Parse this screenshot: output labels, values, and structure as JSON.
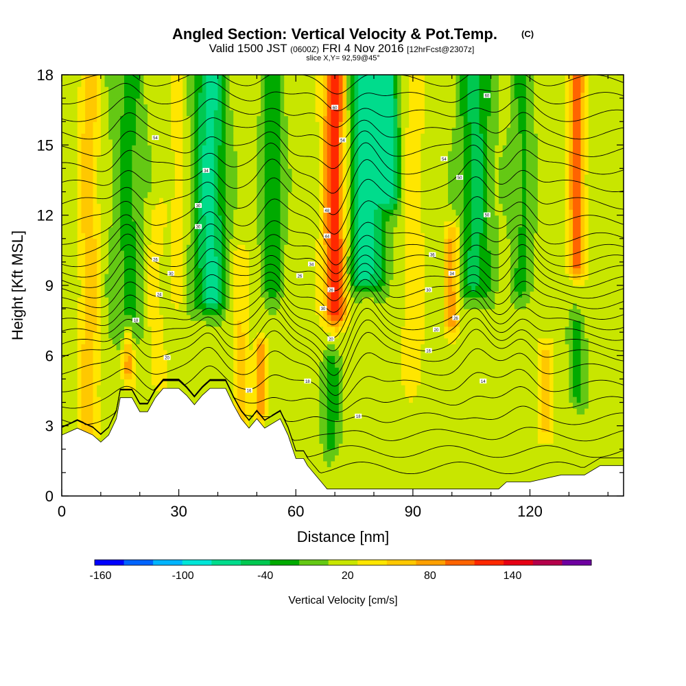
{
  "chart_data": {
    "type": "heatmap",
    "title": {
      "main": "Angled Section: Vertical Velocity & Pot.Temp.",
      "units_tag": "(C)"
    },
    "subtitle": {
      "valid_prefix": "Valid 1500 JST",
      "utc": "(0600Z)",
      "date": "FRI 4 Nov 2016",
      "forecast": "[12hrFcst@2307z]"
    },
    "slice_label": "slice X,Y= 92,59@45°",
    "xlabel": "Distance [nm]",
    "ylabel": "Height [Kft MSL]",
    "xlim": [
      0,
      144
    ],
    "ylim": [
      0,
      18
    ],
    "x_ticks": [
      0,
      30,
      60,
      90,
      120
    ],
    "y_ticks": [
      0,
      3,
      6,
      9,
      12,
      15,
      18
    ],
    "colorbar": {
      "label": "Vertical Velocity [cm/s]",
      "tick_labels": [
        -160,
        -100,
        -40,
        20,
        80,
        140
      ],
      "levels": [
        -160,
        -140,
        -120,
        -100,
        -80,
        -60,
        -40,
        -20,
        0,
        20,
        40,
        60,
        80,
        100,
        120,
        140,
        160
      ],
      "colors": [
        "#0000ff",
        "#0064ff",
        "#00b4ff",
        "#00e6d8",
        "#00dc8c",
        "#00c850",
        "#00aa00",
        "#64c814",
        "#c8e600",
        "#ffe600",
        "#ffc800",
        "#ffa000",
        "#ff6400",
        "#ff2800",
        "#e60014",
        "#b4004b",
        "#6e00a0"
      ]
    },
    "terrain_profile_kft": [
      [
        0,
        2.6
      ],
      [
        4,
        2.9
      ],
      [
        8,
        2.6
      ],
      [
        10,
        2.3
      ],
      [
        12,
        2.6
      ],
      [
        14,
        3.3
      ],
      [
        15,
        4.2
      ],
      [
        18,
        4.2
      ],
      [
        20,
        3.6
      ],
      [
        22,
        3.6
      ],
      [
        24,
        4.2
      ],
      [
        26,
        4.6
      ],
      [
        30,
        4.6
      ],
      [
        32,
        4.3
      ],
      [
        34,
        3.9
      ],
      [
        36,
        4.3
      ],
      [
        38,
        4.6
      ],
      [
        42,
        4.6
      ],
      [
        44,
        3.9
      ],
      [
        46,
        3.3
      ],
      [
        48,
        2.9
      ],
      [
        50,
        3.3
      ],
      [
        52,
        2.9
      ],
      [
        56,
        3.3
      ],
      [
        58,
        2.6
      ],
      [
        60,
        1.6
      ],
      [
        62,
        1.6
      ],
      [
        63,
        1.3
      ],
      [
        65,
        0.9
      ],
      [
        67,
        0.5
      ],
      [
        68,
        0.3
      ],
      [
        86,
        0.3
      ],
      [
        98,
        0.3
      ],
      [
        104,
        0.3
      ],
      [
        112,
        0.3
      ],
      [
        114,
        0.6
      ],
      [
        120,
        0.6
      ],
      [
        128,
        0.9
      ],
      [
        134,
        0.9
      ],
      [
        138,
        1.3
      ],
      [
        144,
        1.3
      ]
    ],
    "vertical_velocity_cores": [
      {
        "x": 7,
        "z0": 3,
        "z1": 18,
        "width_nm": 2.5,
        "w_cm_s": 45
      },
      {
        "x": 17,
        "z0": 7,
        "z1": 18,
        "width_nm": 4,
        "w_cm_s": -35
      },
      {
        "x": 24,
        "z0": 5,
        "z1": 12,
        "width_nm": 3,
        "w_cm_s": 20
      },
      {
        "x": 30,
        "z0": 9,
        "z1": 18,
        "width_nm": 2,
        "w_cm_s": 25
      },
      {
        "x": 38,
        "z0": 8.5,
        "z1": 18,
        "width_nm": 4,
        "w_cm_s": -75
      },
      {
        "x": 46,
        "z0": 3,
        "z1": 10,
        "width_nm": 2,
        "w_cm_s": 35
      },
      {
        "x": 51,
        "z0": 4,
        "z1": 6,
        "width_nm": 1.5,
        "w_cm_s": 80
      },
      {
        "x": 54,
        "z0": 9,
        "z1": 18,
        "width_nm": 3,
        "w_cm_s": -40
      },
      {
        "x": 70,
        "z0": 8,
        "z1": 18,
        "width_nm": 3,
        "w_cm_s": 110
      },
      {
        "x": 69,
        "z0": 2.5,
        "z1": 5.5,
        "width_nm": 2,
        "w_cm_s": -45
      },
      {
        "x": 78,
        "z0": 9.5,
        "z1": 18,
        "width_nm": 5,
        "w_cm_s": -80
      },
      {
        "x": 84,
        "z0": 13,
        "z1": 18,
        "width_nm": 3,
        "w_cm_s": -60
      },
      {
        "x": 90,
        "z0": 5,
        "z1": 18,
        "width_nm": 3,
        "w_cm_s": 25
      },
      {
        "x": 100,
        "z0": 7.5,
        "z1": 11,
        "width_nm": 2,
        "w_cm_s": 60
      },
      {
        "x": 106,
        "z0": 9,
        "z1": 18,
        "width_nm": 4,
        "w_cm_s": -55
      },
      {
        "x": 118,
        "z0": 9,
        "z1": 18,
        "width_nm": 3,
        "w_cm_s": -30
      },
      {
        "x": 132,
        "z0": 10,
        "z1": 18,
        "width_nm": 2,
        "w_cm_s": 85
      },
      {
        "x": 124,
        "z0": 3,
        "z1": 6,
        "width_nm": 2,
        "w_cm_s": 40
      },
      {
        "x": 132,
        "z0": 4.5,
        "z1": 7,
        "width_nm": 2,
        "w_cm_s": -40
      },
      {
        "x": 17,
        "z0": 5.5,
        "z1": 6.5,
        "width_nm": 1.5,
        "w_cm_s": 65
      }
    ],
    "isentrope_labels": [
      {
        "x": 24,
        "z": 15.3,
        "text": "54"
      },
      {
        "x": 37,
        "z": 13.9,
        "text": "34"
      },
      {
        "x": 35,
        "z": 12.4,
        "text": "30"
      },
      {
        "x": 35,
        "z": 11.5,
        "text": "30"
      },
      {
        "x": 24,
        "z": 10.1,
        "text": "26"
      },
      {
        "x": 28,
        "z": 9.5,
        "text": "30"
      },
      {
        "x": 25,
        "z": 8.6,
        "text": "24"
      },
      {
        "x": 19,
        "z": 7.5,
        "text": "18"
      },
      {
        "x": 27,
        "z": 5.9,
        "text": "20"
      },
      {
        "x": 48,
        "z": 4.5,
        "text": "16"
      },
      {
        "x": 63,
        "z": 4.9,
        "text": "18"
      },
      {
        "x": 70,
        "z": 16.6,
        "text": "60"
      },
      {
        "x": 72,
        "z": 15.2,
        "text": "54"
      },
      {
        "x": 68,
        "z": 12.2,
        "text": "48"
      },
      {
        "x": 68,
        "z": 11.1,
        "text": "44"
      },
      {
        "x": 64,
        "z": 9.9,
        "text": "34"
      },
      {
        "x": 61,
        "z": 9.4,
        "text": "26"
      },
      {
        "x": 69,
        "z": 8.8,
        "text": "26"
      },
      {
        "x": 67,
        "z": 8.0,
        "text": "30"
      },
      {
        "x": 69,
        "z": 6.7,
        "text": "20"
      },
      {
        "x": 76,
        "z": 3.4,
        "text": "18"
      },
      {
        "x": 109,
        "z": 17.1,
        "text": "60"
      },
      {
        "x": 98,
        "z": 14.4,
        "text": "54"
      },
      {
        "x": 102,
        "z": 13.6,
        "text": "50"
      },
      {
        "x": 109,
        "z": 12.0,
        "text": "50"
      },
      {
        "x": 95,
        "z": 10.3,
        "text": "36"
      },
      {
        "x": 100,
        "z": 9.5,
        "text": "34"
      },
      {
        "x": 94,
        "z": 8.8,
        "text": "30"
      },
      {
        "x": 101,
        "z": 7.6,
        "text": "26"
      },
      {
        "x": 96,
        "z": 7.1,
        "text": "20"
      },
      {
        "x": 94,
        "z": 6.2,
        "text": "16"
      },
      {
        "x": 108,
        "z": 4.9,
        "text": "14"
      }
    ]
  }
}
